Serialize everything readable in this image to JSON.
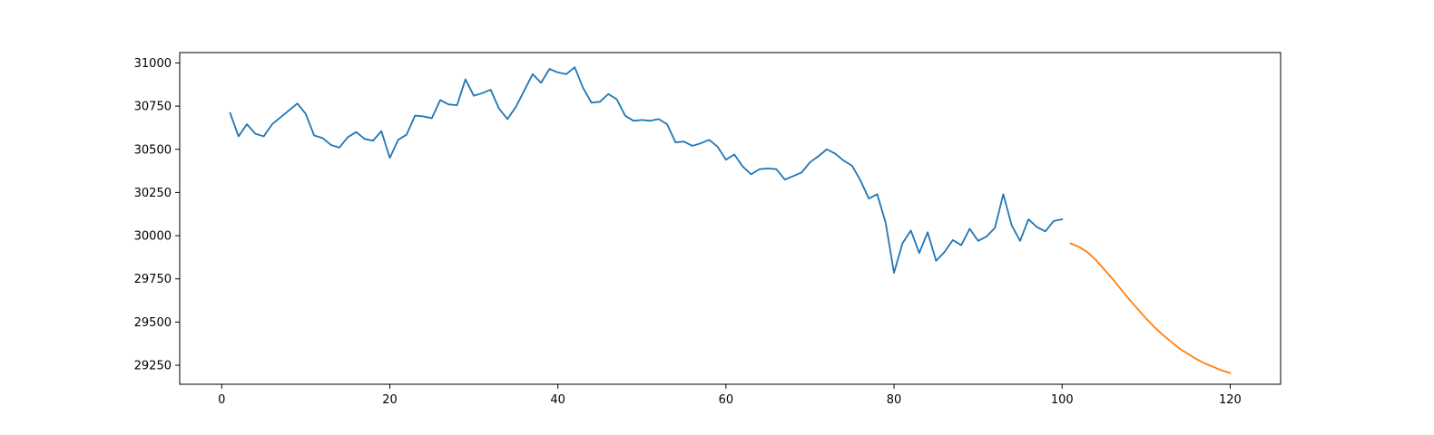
{
  "chart_data": {
    "type": "line",
    "title": "",
    "xlabel": "",
    "ylabel": "",
    "xlim": [
      -5,
      126
    ],
    "ylim": [
      29140,
      31060
    ],
    "x_ticks": [
      0,
      20,
      40,
      60,
      80,
      100,
      120
    ],
    "y_ticks": [
      29250,
      29500,
      29750,
      30000,
      30250,
      30500,
      30750,
      31000
    ],
    "grid": false,
    "legend": "none",
    "series": [
      {
        "color": "#1f77b4",
        "x": [
          1,
          2,
          3,
          4,
          5,
          6,
          7,
          8,
          9,
          10,
          11,
          12,
          13,
          14,
          15,
          16,
          17,
          18,
          19,
          20,
          21,
          22,
          23,
          24,
          25,
          26,
          27,
          28,
          29,
          30,
          31,
          32,
          33,
          34,
          35,
          36,
          37,
          38,
          39,
          40,
          41,
          42,
          43,
          44,
          45,
          46,
          47,
          48,
          49,
          50,
          51,
          52,
          53,
          54,
          55,
          56,
          57,
          58,
          59,
          60,
          61,
          62,
          63,
          64,
          65,
          66,
          67,
          68,
          69,
          70,
          71,
          72,
          73,
          74,
          75,
          76,
          77,
          78,
          79,
          80,
          81,
          82,
          83,
          84,
          85,
          86,
          87,
          88,
          89,
          90,
          91,
          92,
          93,
          94,
          95,
          96,
          97,
          98,
          99,
          100
        ],
        "y": [
          30710,
          30575,
          30645,
          30590,
          30575,
          30645,
          30685,
          30725,
          30765,
          30705,
          30580,
          30565,
          30525,
          30510,
          30570,
          30600,
          30560,
          30550,
          30605,
          30450,
          30555,
          30585,
          30695,
          30690,
          30680,
          30785,
          30760,
          30755,
          30905,
          30810,
          30825,
          30845,
          30735,
          30675,
          30745,
          30840,
          30935,
          30885,
          30965,
          30945,
          30935,
          30975,
          30855,
          30770,
          30775,
          30820,
          30790,
          30695,
          30665,
          30670,
          30665,
          30675,
          30645,
          30540,
          30545,
          30520,
          30535,
          30555,
          30515,
          30440,
          30470,
          30400,
          30355,
          30385,
          30390,
          30385,
          30325,
          30345,
          30365,
          30425,
          30460,
          30500,
          30475,
          30435,
          30405,
          30320,
          30215,
          30240,
          30075,
          29785,
          29955,
          30030,
          29900,
          30020,
          29855,
          29905,
          29975,
          29945,
          30040,
          29970,
          29995,
          30045,
          30240,
          30060,
          29970,
          30095,
          30050,
          30025,
          30085,
          30095
        ]
      },
      {
        "color": "#ff7f0e",
        "x": [
          101,
          102,
          103,
          104,
          105,
          106,
          107,
          108,
          109,
          110,
          111,
          112,
          113,
          114,
          115,
          116,
          117,
          118,
          119,
          120
        ],
        "y": [
          29955,
          29935,
          29905,
          29860,
          29805,
          29750,
          29690,
          29630,
          29575,
          29520,
          29470,
          29425,
          29385,
          29345,
          29315,
          29285,
          29260,
          29240,
          29220,
          29205
        ]
      }
    ]
  }
}
